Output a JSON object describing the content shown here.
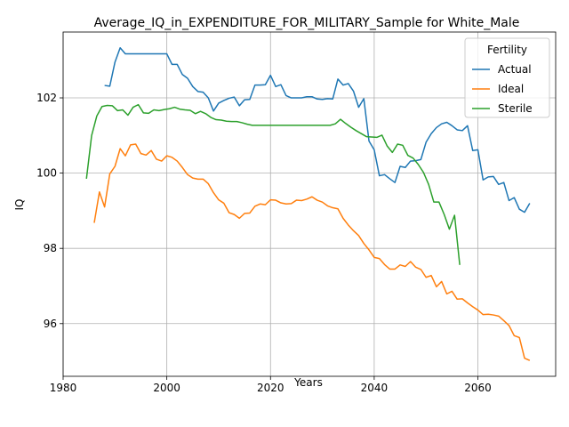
{
  "chart_data": {
    "type": "line",
    "title": "Average_IQ_in_EXPENDITURE_FOR_MILITARY_Sample for White_Male",
    "xlabel": "Years",
    "ylabel": "IQ",
    "xlim": [
      1980,
      2075
    ],
    "ylim": [
      94.6,
      103.75
    ],
    "xticks": [
      1980,
      2000,
      2020,
      2040,
      2060
    ],
    "yticks": [
      96,
      98,
      100,
      102
    ],
    "grid": true,
    "legend": {
      "title": "Fertility",
      "placement": "top-right"
    },
    "series": [
      {
        "name": "Actual",
        "color": "#1f77b4",
        "points": [
          [
            1988,
            102.33
          ],
          [
            1989,
            102.31
          ],
          [
            1990,
            102.95
          ],
          [
            1991,
            103.33
          ],
          [
            1992,
            103.17
          ],
          [
            1993,
            103.17
          ],
          [
            1994,
            103.17
          ],
          [
            1995,
            103.17
          ],
          [
            1996,
            103.17
          ],
          [
            1997,
            103.17
          ],
          [
            1998,
            103.17
          ],
          [
            1999,
            103.17
          ],
          [
            2000,
            103.17
          ],
          [
            2001,
            102.89
          ],
          [
            2002,
            102.89
          ],
          [
            2003,
            102.62
          ],
          [
            2004,
            102.52
          ],
          [
            2005,
            102.3
          ],
          [
            2006,
            102.17
          ],
          [
            2007,
            102.15
          ],
          [
            2008,
            102.0
          ],
          [
            2009,
            101.65
          ],
          [
            2010,
            101.86
          ],
          [
            2011,
            101.93
          ],
          [
            2012,
            101.99
          ],
          [
            2013,
            102.02
          ],
          [
            2014,
            101.79
          ],
          [
            2015,
            101.95
          ],
          [
            2016,
            101.96
          ],
          [
            2017,
            102.34
          ],
          [
            2018,
            102.34
          ],
          [
            2019,
            102.35
          ],
          [
            2020,
            102.6
          ],
          [
            2021,
            102.3
          ],
          [
            2022,
            102.35
          ],
          [
            2023,
            102.06
          ],
          [
            2024,
            102.0
          ],
          [
            2025,
            102.0
          ],
          [
            2026,
            102.0
          ],
          [
            2027,
            102.03
          ],
          [
            2028,
            102.03
          ],
          [
            2029,
            101.97
          ],
          [
            2030,
            101.96
          ],
          [
            2031,
            101.98
          ],
          [
            2032,
            101.97
          ],
          [
            2033,
            102.5
          ],
          [
            2034,
            102.34
          ],
          [
            2035,
            102.38
          ],
          [
            2036,
            102.18
          ],
          [
            2037,
            101.75
          ],
          [
            2038,
            101.98
          ],
          [
            2039,
            100.85
          ],
          [
            2040,
            100.62
          ],
          [
            2041,
            99.93
          ],
          [
            2042,
            99.96
          ],
          [
            2043,
            99.85
          ],
          [
            2044,
            99.75
          ],
          [
            2045,
            100.18
          ],
          [
            2046,
            100.15
          ],
          [
            2047,
            100.32
          ],
          [
            2048,
            100.33
          ],
          [
            2049,
            100.36
          ],
          [
            2050,
            100.82
          ],
          [
            2051,
            101.05
          ],
          [
            2052,
            101.21
          ],
          [
            2053,
            101.31
          ],
          [
            2054,
            101.35
          ],
          [
            2055,
            101.26
          ],
          [
            2056,
            101.15
          ],
          [
            2057,
            101.13
          ],
          [
            2058,
            101.26
          ],
          [
            2059,
            100.6
          ],
          [
            2060,
            100.62
          ],
          [
            2061,
            99.82
          ],
          [
            2062,
            99.9
          ],
          [
            2063,
            99.91
          ],
          [
            2064,
            99.7
          ],
          [
            2065,
            99.75
          ],
          [
            2066,
            99.27
          ],
          [
            2067,
            99.35
          ],
          [
            2068,
            99.04
          ],
          [
            2069,
            98.96
          ],
          [
            2070,
            99.2
          ]
        ]
      },
      {
        "name": "Ideal",
        "color": "#ff7f0e",
        "points": [
          [
            1986,
            98.68
          ],
          [
            1987,
            99.5
          ],
          [
            1988,
            99.1
          ],
          [
            1989,
            99.98
          ],
          [
            1990,
            100.18
          ],
          [
            1991,
            100.65
          ],
          [
            1992,
            100.46
          ],
          [
            1993,
            100.75
          ],
          [
            1994,
            100.77
          ],
          [
            1995,
            100.52
          ],
          [
            1996,
            100.48
          ],
          [
            1997,
            100.6
          ],
          [
            1998,
            100.37
          ],
          [
            1999,
            100.32
          ],
          [
            2000,
            100.46
          ],
          [
            2001,
            100.42
          ],
          [
            2002,
            100.32
          ],
          [
            2003,
            100.15
          ],
          [
            2004,
            99.96
          ],
          [
            2005,
            99.87
          ],
          [
            2006,
            99.84
          ],
          [
            2007,
            99.84
          ],
          [
            2008,
            99.72
          ],
          [
            2009,
            99.48
          ],
          [
            2010,
            99.29
          ],
          [
            2011,
            99.2
          ],
          [
            2012,
            98.95
          ],
          [
            2013,
            98.9
          ],
          [
            2014,
            98.8
          ],
          [
            2015,
            98.93
          ],
          [
            2016,
            98.94
          ],
          [
            2017,
            99.12
          ],
          [
            2018,
            99.18
          ],
          [
            2019,
            99.16
          ],
          [
            2020,
            99.29
          ],
          [
            2021,
            99.28
          ],
          [
            2022,
            99.21
          ],
          [
            2023,
            99.18
          ],
          [
            2024,
            99.19
          ],
          [
            2025,
            99.28
          ],
          [
            2026,
            99.27
          ],
          [
            2027,
            99.31
          ],
          [
            2028,
            99.37
          ],
          [
            2029,
            99.28
          ],
          [
            2030,
            99.23
          ],
          [
            2031,
            99.13
          ],
          [
            2032,
            99.08
          ],
          [
            2033,
            99.05
          ],
          [
            2034,
            98.8
          ],
          [
            2035,
            98.62
          ],
          [
            2036,
            98.47
          ],
          [
            2037,
            98.34
          ],
          [
            2038,
            98.13
          ],
          [
            2039,
            97.96
          ],
          [
            2040,
            97.76
          ],
          [
            2041,
            97.73
          ],
          [
            2042,
            97.57
          ],
          [
            2043,
            97.45
          ],
          [
            2044,
            97.45
          ],
          [
            2045,
            97.56
          ],
          [
            2046,
            97.52
          ],
          [
            2047,
            97.65
          ],
          [
            2048,
            97.5
          ],
          [
            2049,
            97.44
          ],
          [
            2050,
            97.23
          ],
          [
            2051,
            97.28
          ],
          [
            2052,
            96.98
          ],
          [
            2053,
            97.12
          ],
          [
            2054,
            96.79
          ],
          [
            2055,
            96.86
          ],
          [
            2056,
            96.65
          ],
          [
            2057,
            96.66
          ],
          [
            2058,
            96.55
          ],
          [
            2059,
            96.45
          ],
          [
            2060,
            96.36
          ],
          [
            2061,
            96.24
          ],
          [
            2062,
            96.25
          ],
          [
            2063,
            96.23
          ],
          [
            2064,
            96.2
          ],
          [
            2065,
            96.08
          ],
          [
            2066,
            95.95
          ],
          [
            2067,
            95.68
          ],
          [
            2068,
            95.63
          ],
          [
            2069,
            95.08
          ],
          [
            2070,
            95.02
          ]
        ]
      },
      {
        "name": "Sterile",
        "color": "#2ca02c",
        "points": [
          [
            1984.5,
            99.85
          ],
          [
            1985.5,
            101.0
          ],
          [
            1986.5,
            101.52
          ],
          [
            1987.5,
            101.77
          ],
          [
            1988.5,
            101.8
          ],
          [
            1989.5,
            101.79
          ],
          [
            1990.5,
            101.66
          ],
          [
            1991.5,
            101.68
          ],
          [
            1992.5,
            101.54
          ],
          [
            1993.5,
            101.75
          ],
          [
            1994.5,
            101.82
          ],
          [
            1995.5,
            101.6
          ],
          [
            1996.5,
            101.59
          ],
          [
            1997.5,
            101.68
          ],
          [
            1998.5,
            101.66
          ],
          [
            1999.5,
            101.69
          ],
          [
            2000.5,
            101.71
          ],
          [
            2001.5,
            101.75
          ],
          [
            2002.5,
            101.7
          ],
          [
            2003.5,
            101.68
          ],
          [
            2004.5,
            101.67
          ],
          [
            2005.5,
            101.58
          ],
          [
            2006.5,
            101.64
          ],
          [
            2007.5,
            101.58
          ],
          [
            2008.5,
            101.48
          ],
          [
            2009.5,
            101.42
          ],
          [
            2010.5,
            101.41
          ],
          [
            2011.5,
            101.38
          ],
          [
            2012.5,
            101.37
          ],
          [
            2013.5,
            101.37
          ],
          [
            2014.5,
            101.34
          ],
          [
            2015.5,
            101.3
          ],
          [
            2016.5,
            101.27
          ],
          [
            2017.5,
            101.27
          ],
          [
            2018.5,
            101.27
          ],
          [
            2019.5,
            101.27
          ],
          [
            2020.5,
            101.27
          ],
          [
            2021.5,
            101.27
          ],
          [
            2022.5,
            101.27
          ],
          [
            2023.5,
            101.27
          ],
          [
            2024.5,
            101.27
          ],
          [
            2025.5,
            101.27
          ],
          [
            2026.5,
            101.27
          ],
          [
            2027.5,
            101.27
          ],
          [
            2028.5,
            101.27
          ],
          [
            2029.5,
            101.27
          ],
          [
            2030.5,
            101.27
          ],
          [
            2031.5,
            101.27
          ],
          [
            2032.5,
            101.31
          ],
          [
            2033.5,
            101.43
          ],
          [
            2034.5,
            101.32
          ],
          [
            2035.5,
            101.22
          ],
          [
            2036.5,
            101.13
          ],
          [
            2037.5,
            101.05
          ],
          [
            2038.5,
            100.97
          ],
          [
            2039.5,
            100.96
          ],
          [
            2040.5,
            100.95
          ],
          [
            2041.5,
            101.01
          ],
          [
            2042.5,
            100.72
          ],
          [
            2043.5,
            100.55
          ],
          [
            2044.5,
            100.77
          ],
          [
            2045.5,
            100.74
          ],
          [
            2046.5,
            100.47
          ],
          [
            2047.5,
            100.4
          ],
          [
            2048.5,
            100.23
          ],
          [
            2049.5,
            100.02
          ],
          [
            2050.5,
            99.7
          ],
          [
            2051.5,
            99.23
          ],
          [
            2052.5,
            99.23
          ],
          [
            2053.5,
            98.9
          ],
          [
            2054.5,
            98.51
          ],
          [
            2055.5,
            98.88
          ],
          [
            2056.5,
            97.56
          ]
        ]
      }
    ]
  }
}
